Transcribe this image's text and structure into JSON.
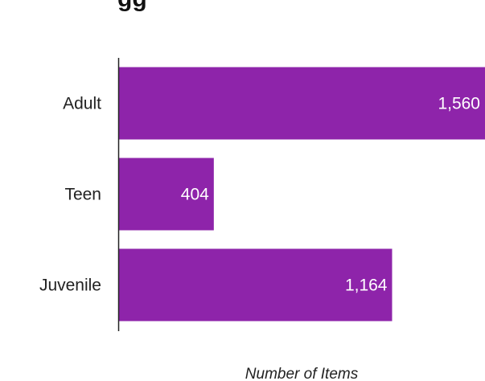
{
  "chart_data": {
    "type": "bar",
    "orientation": "horizontal",
    "title_fragment": "gg",
    "categories": [
      "Adult",
      "Teen",
      "Juvenile"
    ],
    "values": [
      1560,
      404,
      1164
    ],
    "value_labels": [
      "1,560",
      "404",
      "1,164"
    ],
    "xlabel": "Number of Items",
    "ylabel": "",
    "xlim": [
      0,
      1560
    ],
    "grid": false,
    "legend": "none",
    "bar_color": "#8E24AA"
  }
}
